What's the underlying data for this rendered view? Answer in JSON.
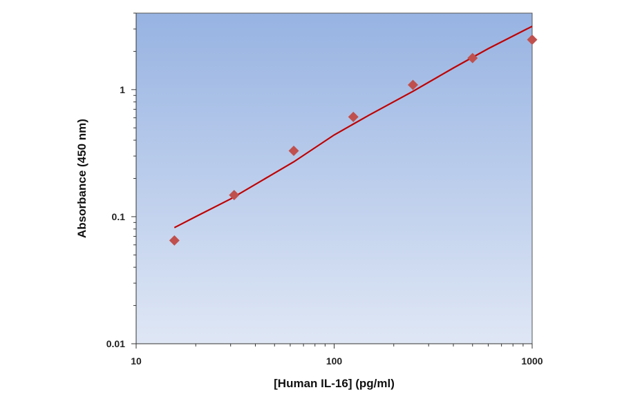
{
  "chart_data": {
    "type": "scatter",
    "title": "",
    "xlabel": "[Human IL-16] (pg/ml)",
    "ylabel": "Absorbance (450 nm)",
    "x_scale": "log",
    "y_scale": "log",
    "xlim": [
      10,
      1000
    ],
    "ylim": [
      0.01,
      4
    ],
    "x_ticks": [
      {
        "value": 10,
        "label": "10"
      },
      {
        "value": 100,
        "label": "100"
      },
      {
        "value": 1000,
        "label": "1000"
      }
    ],
    "y_ticks": [
      {
        "value": 0.01,
        "label": "0.01"
      },
      {
        "value": 0.1,
        "label": "0.1"
      },
      {
        "value": 1,
        "label": "1"
      }
    ],
    "grid": false,
    "legend": "none",
    "series": [
      {
        "marker": "diamond",
        "color": "#c0504d",
        "x": [
          15.6,
          31.25,
          62.5,
          125,
          250,
          500,
          1000
        ],
        "y": [
          0.065,
          0.148,
          0.33,
          0.61,
          1.09,
          1.77,
          2.47
        ]
      }
    ],
    "fit_line": {
      "color": "#c00000",
      "x": [
        15.6,
        20,
        30,
        45,
        62.5,
        100,
        150,
        250,
        400,
        600,
        1000
      ],
      "y": [
        0.082,
        0.1,
        0.138,
        0.2,
        0.27,
        0.44,
        0.63,
        0.97,
        1.48,
        2.1,
        3.15
      ]
    },
    "plot_background": [
      "#97b3e2",
      "#dfe7f5"
    ]
  }
}
